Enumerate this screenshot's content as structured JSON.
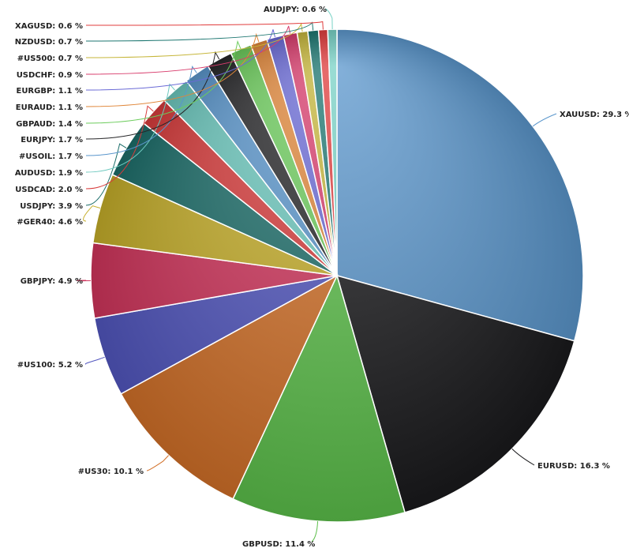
{
  "chart_data": {
    "type": "pie",
    "title": "",
    "value_suffix": " %",
    "slices": [
      {
        "name": "XAUUSD",
        "value": 29.3,
        "color": "#5a96cc"
      },
      {
        "name": "EURUSD",
        "value": 16.3,
        "color": "#1a1a1c"
      },
      {
        "name": "GBPUSD",
        "value": 11.4,
        "color": "#5cbf4a"
      },
      {
        "name": "#US30",
        "value": 10.1,
        "color": "#d27028"
      },
      {
        "name": "#US100",
        "value": 5.2,
        "color": "#5256bf"
      },
      {
        "name": "GBPJPY",
        "value": 4.9,
        "color": "#d0345c"
      },
      {
        "name": "#GER40",
        "value": 4.6,
        "color": "#c6ae2a"
      },
      {
        "name": "USDJPY",
        "value": 3.9,
        "color": "#1c6e6a"
      },
      {
        "name": "USDCAD",
        "value": 2.0,
        "color": "#d83c3c"
      },
      {
        "name": "AUDUSD",
        "value": 1.9,
        "color": "#6cc8be"
      },
      {
        "name": "#USOIL",
        "value": 1.7,
        "color": "#5a96cc"
      },
      {
        "name": "EURJPY",
        "value": 1.7,
        "color": "#262628"
      },
      {
        "name": "GBPAUD",
        "value": 1.4,
        "color": "#6ccc5c"
      },
      {
        "name": "EURAUD",
        "value": 1.1,
        "color": "#e0873a"
      },
      {
        "name": "EURGBP",
        "value": 1.1,
        "color": "#6a6ad6"
      },
      {
        "name": "USDCHF",
        "value": 0.9,
        "color": "#d83c6c"
      },
      {
        "name": "#US500",
        "value": 0.7,
        "color": "#c6b63a"
      },
      {
        "name": "NZDUSD",
        "value": 0.7,
        "color": "#1c7670"
      },
      {
        "name": "XAGUSD",
        "value": 0.6,
        "color": "#e03c3c"
      },
      {
        "name": "AUDJPY",
        "value": 0.6,
        "color": "#78d2c6"
      }
    ]
  }
}
